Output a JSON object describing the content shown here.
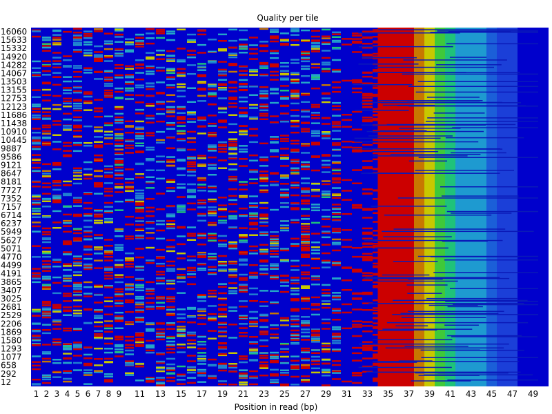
{
  "chart_data": {
    "type": "heatmap",
    "title": "Quality per tile",
    "xlabel": "Position in read (bp)",
    "ylabel": "",
    "x_tick_labels": [
      "1",
      "2",
      "3",
      "4",
      "5",
      "6",
      "7",
      "8",
      "9",
      "11",
      "13",
      "15",
      "17",
      "19",
      "21",
      "23",
      "25",
      "27",
      "29",
      "31",
      "33",
      "35",
      "37",
      "39",
      "41",
      "43",
      "45",
      "47",
      "49"
    ],
    "y_tick_labels": [
      "16060",
      "15633",
      "15332",
      "14920",
      "14282",
      "14067",
      "13503",
      "13155",
      "12753",
      "12123",
      "11686",
      "11438",
      "10910",
      "10445",
      "9887",
      "9586",
      "9121",
      "8647",
      "8181",
      "7727",
      "7352",
      "7157",
      "6714",
      "6237",
      "5949",
      "5627",
      "5071",
      "4770",
      "4499",
      "4191",
      "3865",
      "3407",
      "3025",
      "2681",
      "2529",
      "2206",
      "1869",
      "1580",
      "1293",
      "1077",
      "658",
      "292",
      "12"
    ],
    "x_range": [
      1,
      50
    ],
    "rows": 43,
    "color_scale": {
      "low": "#0000cc",
      "high": "#cc0000",
      "stops": [
        "#0000cc",
        "#1b3fd8",
        "#1f7fd1",
        "#23a6c8",
        "#1fc27a",
        "#3fc93a",
        "#b8c800",
        "#c87800",
        "#cc0000"
      ]
    },
    "column_summary": {
      "positions_1_to_30": "mostly low deviation (blue) with sparse red/cyan/yellow speckles",
      "positions_31_to_37": "increasing red streaks, solid red band 34-37",
      "position_38": "orange band",
      "position_39": "yellow band",
      "position_40_41": "green bands",
      "positions_42_to_45": "light blue bands",
      "positions_46_to_50": "blue to dark blue bands"
    },
    "background_color": "#0000cc",
    "grid": false,
    "legend": "none"
  }
}
